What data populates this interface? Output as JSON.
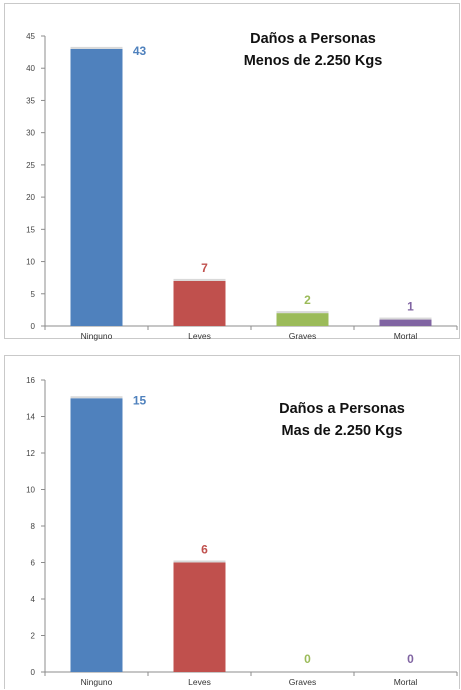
{
  "chart_data": [
    {
      "type": "bar",
      "title": [
        "Daños a Personas",
        "Menos de 2.250 Kgs"
      ],
      "categories": [
        "Ninguno",
        "Leves",
        "Graves",
        "Mortal"
      ],
      "values": [
        43,
        7,
        2,
        1
      ],
      "bar_colors": [
        "#4f81bd",
        "#c0504d",
        "#9bbb59",
        "#8064a2"
      ],
      "ylim": [
        0,
        45
      ],
      "yticks": [
        0,
        5,
        10,
        15,
        20,
        25,
        30,
        35,
        40,
        45
      ],
      "xlabel": "",
      "ylabel": "",
      "grid": false,
      "legend": "none"
    },
    {
      "type": "bar",
      "title": [
        "Daños a Personas",
        "Mas de 2.250 Kgs"
      ],
      "categories": [
        "Ninguno",
        "Leves",
        "Graves",
        "Mortal"
      ],
      "values": [
        15,
        6,
        0,
        0
      ],
      "bar_colors": [
        "#4f81bd",
        "#c0504d",
        "#9bbb59",
        "#8064a2"
      ],
      "ylim": [
        0,
        16
      ],
      "yticks": [
        0,
        2,
        4,
        6,
        8,
        10,
        12,
        14,
        16
      ],
      "xlabel": "",
      "ylabel": "",
      "grid": false,
      "legend": "none"
    }
  ]
}
